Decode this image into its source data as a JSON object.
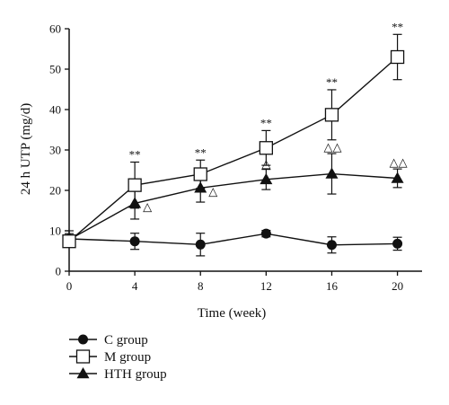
{
  "chart_data": {
    "type": "line",
    "title": "",
    "xlabel": "Time (week)",
    "ylabel": "24 h UTP (mg/d)",
    "x": [
      0,
      4,
      8,
      12,
      16,
      20
    ],
    "xlim": [
      0,
      21.5
    ],
    "ylim": [
      0,
      60
    ],
    "x_ticks": [
      "0",
      "4",
      "8",
      "12",
      "16",
      "20"
    ],
    "y_ticks": [
      "0",
      "10",
      "20",
      "30",
      "40",
      "50",
      "60"
    ],
    "grid": false,
    "legend_position": "bottom-left",
    "series": [
      {
        "name": "C group",
        "marker": "filled-circle",
        "values": [
          8.0,
          7.4,
          6.6,
          9.3,
          6.5,
          6.8
        ],
        "error": [
          2.0,
          2.0,
          2.8,
          0.8,
          2.0,
          1.6
        ]
      },
      {
        "name": "M group",
        "marker": "open-square",
        "values": [
          7.4,
          21.3,
          24.0,
          30.5,
          38.7,
          53.0
        ],
        "error": [
          1.3,
          5.7,
          3.5,
          4.3,
          6.2,
          5.6
        ]
      },
      {
        "name": "HTH group",
        "marker": "filled-triangle",
        "values": [
          7.8,
          16.8,
          20.6,
          22.7,
          24.1,
          23.0
        ],
        "error": [
          1.5,
          3.9,
          3.5,
          2.5,
          5.0,
          2.3
        ]
      }
    ],
    "annotations": {
      "star_text": "**",
      "triangle_symbol": "△",
      "stars_at_x": [
        4,
        8,
        12,
        16,
        20
      ],
      "triangles": [
        {
          "x": 4,
          "count": 1
        },
        {
          "x": 8,
          "count": 1
        },
        {
          "x": 12,
          "count": 1
        },
        {
          "x": 16,
          "count": 2
        },
        {
          "x": 20,
          "count": 2
        }
      ]
    }
  }
}
